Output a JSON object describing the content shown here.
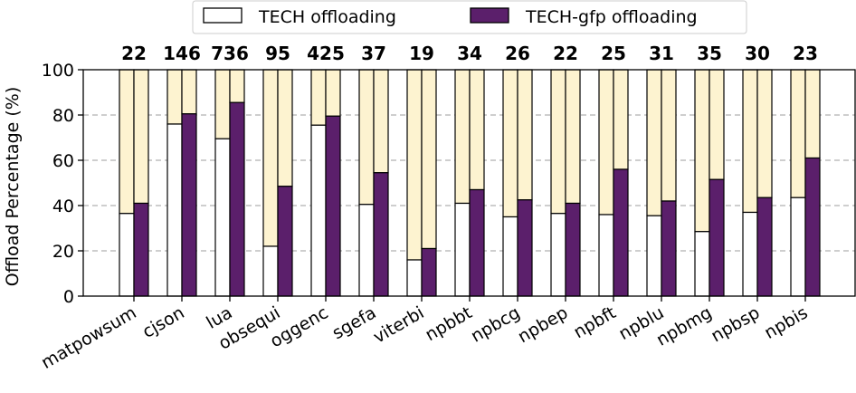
{
  "chart_data": {
    "type": "bar",
    "stacked_with_remainder": true,
    "categories": [
      "matpowsum",
      "cjson",
      "lua",
      "obsequi",
      "oggenc",
      "sgefa",
      "viterbi",
      "npbbt",
      "npbcg",
      "npbep",
      "npbft",
      "npblu",
      "npbmg",
      "npbsp",
      "npbis"
    ],
    "series": [
      {
        "name": "TECH offloading",
        "values": [
          36.5,
          76,
          69.5,
          22,
          75.5,
          40.5,
          16,
          41,
          35,
          36.5,
          36,
          35.5,
          28.5,
          37,
          43.5
        ]
      },
      {
        "name": "TECH-gfp offloading",
        "values": [
          41,
          80.5,
          85.5,
          48.5,
          79.5,
          54.5,
          21,
          47,
          42.5,
          41,
          56,
          42,
          51.5,
          43.5,
          61
        ]
      }
    ],
    "top_labels": [
      "22",
      "146",
      "736",
      "95",
      "425",
      "37",
      "19",
      "34",
      "26",
      "22",
      "25",
      "31",
      "35",
      "30",
      "23"
    ],
    "ylabel": "Offload Percentage (%)",
    "xlabel": "",
    "ylim": [
      0,
      100
    ],
    "yticks": [
      "0",
      "20",
      "40",
      "60",
      "80",
      "100"
    ],
    "grid": "horizontal dashed",
    "legend_position": "top-center",
    "colors": {
      "tech": "#ffffff",
      "gfp": "#5b1f6b",
      "remainder": "#fdf3d0",
      "edge": "#000000",
      "grid": "#b0b0b0"
    }
  }
}
